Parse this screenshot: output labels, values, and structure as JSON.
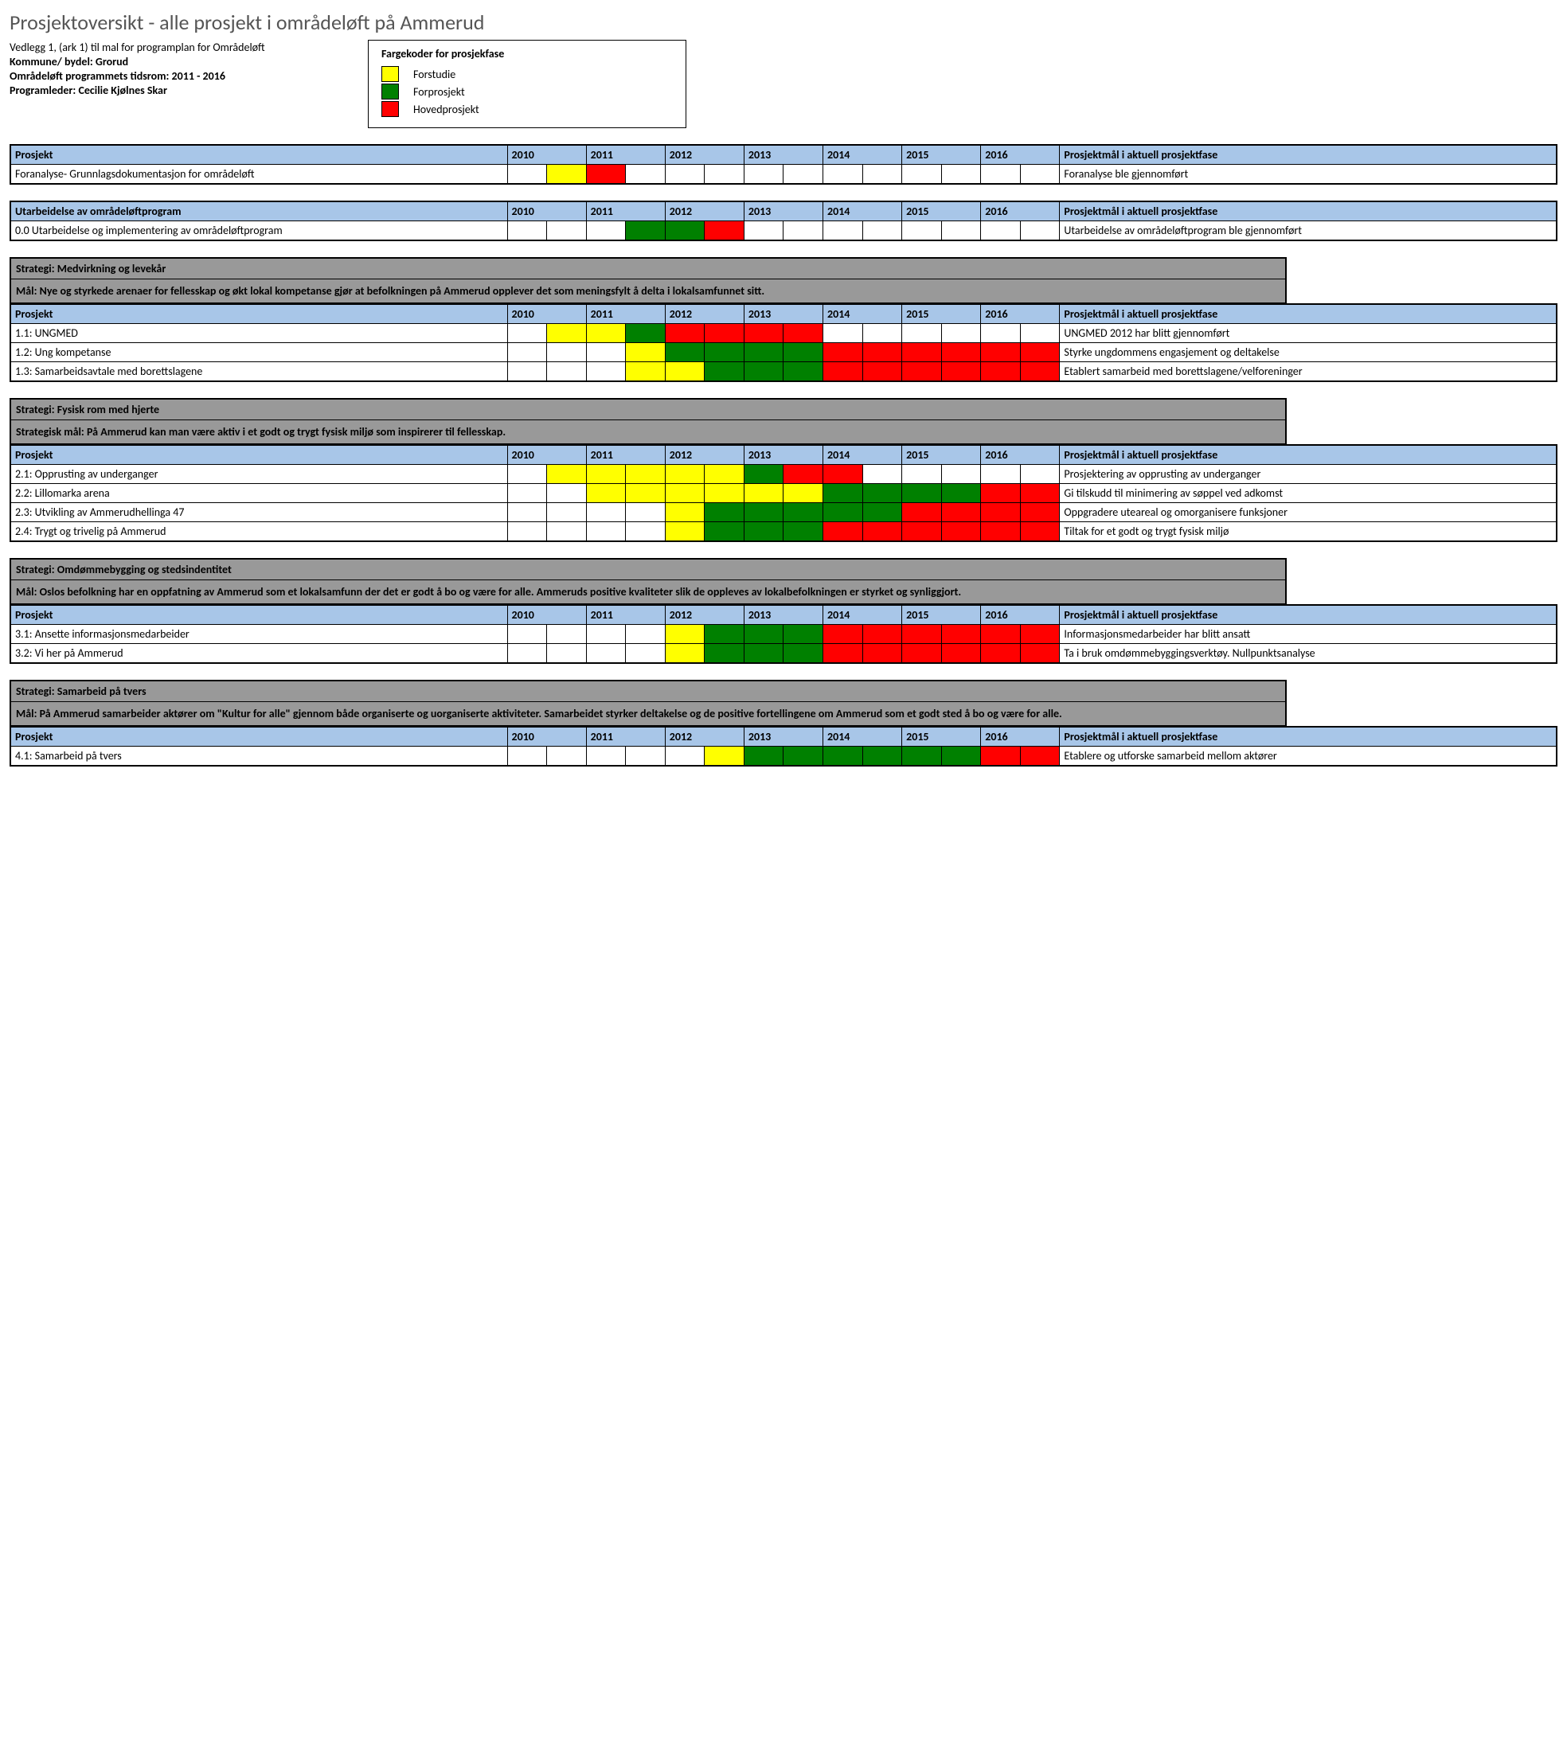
{
  "title": "Prosjektoversikt - alle prosjekt i områdeløft på Ammerud",
  "meta": {
    "vedlegg": "Vedlegg 1, (ark 1) til mal for programplan for Områdeløft",
    "kommune": "Kommune/ bydel: Grorud",
    "tidsrom": "Områdeløft programmets tidsrom: 2011 - 2016",
    "leder": "Programleder: Cecilie Kjølnes Skar"
  },
  "legend": {
    "title": "Fargekoder for prosjekfase",
    "items": [
      {
        "label": "Forstudie",
        "color": "#ffff00"
      },
      {
        "label": "Forprosjekt",
        "color": "#008000"
      },
      {
        "label": "Hovedprosjekt",
        "color": "#ff0000"
      }
    ]
  },
  "colors": {
    "blue": "#a8c6e8",
    "grey": "#999999",
    "yellow": "#ffff00",
    "green": "#008000",
    "red": "#ff0000",
    "white": "#ffffff"
  },
  "years": [
    "2010",
    "2011",
    "2012",
    "2013",
    "2014",
    "2015",
    "2016"
  ],
  "col_headers": {
    "project": "Prosjekt",
    "goal": "Prosjektmål i aktuell prosjektfase"
  },
  "sections": [
    {
      "type": "simple",
      "header_label": "Prosjekt",
      "rows": [
        {
          "name": "Foranalyse- Grunnlagsdokumentasjon for områdeløft",
          "cells": [
            "",
            "yellow",
            "red",
            "",
            "",
            "",
            "",
            "",
            "",
            "",
            "",
            "",
            "",
            ""
          ],
          "goal": "Foranalyse ble gjennomført"
        }
      ]
    },
    {
      "type": "simple",
      "header_label": "Utarbeidelse av områdeløftprogram",
      "rows": [
        {
          "name": "0.0 Utarbeidelse og implementering av områdeløftprogram",
          "cells": [
            "",
            "",
            "",
            "green",
            "green",
            "red",
            "",
            "",
            "",
            "",
            "",
            "",
            "",
            ""
          ],
          "goal": "Utarbeidelse av områdeløftprogram ble gjennomført"
        }
      ]
    },
    {
      "type": "strategy",
      "strategy": "Strategi: Medvirkning og levekår",
      "goal_text": "Mål: Nye og styrkede arenaer for fellesskap og økt lokal kompetanse gjør at befolkningen på Ammerud opplever det som meningsfylt å delta i lokalsamfunnet sitt.",
      "rows": [
        {
          "name": "1.1: UNGMED",
          "cells": [
            "",
            "yellow",
            "yellow",
            "green",
            "red",
            "red",
            "red",
            "red",
            "",
            "",
            "",
            "",
            "",
            ""
          ],
          "goal": "UNGMED 2012 har blitt gjennomført"
        },
        {
          "name": "1.2: Ung kompetanse",
          "cells": [
            "",
            "",
            "",
            "yellow",
            "green",
            "green",
            "green",
            "green",
            "red",
            "red",
            "red",
            "red",
            "red",
            "red"
          ],
          "goal": "Styrke ungdommens engasjement og deltakelse"
        },
        {
          "name": "1.3: Samarbeidsavtale med borettslagene",
          "cells": [
            "",
            "",
            "",
            "yellow",
            "yellow",
            "green",
            "green",
            "green",
            "red",
            "red",
            "red",
            "red",
            "red",
            "red"
          ],
          "goal": "Etablert samarbeid med borettslagene/velforeninger"
        }
      ]
    },
    {
      "type": "strategy",
      "strategy": "Strategi: Fysisk rom med hjerte",
      "goal_text": "Strategisk mål: På Ammerud kan man være aktiv i et godt og trygt fysisk miljø som inspirerer til fellesskap.",
      "rows": [
        {
          "name": "2.1: Opprusting av underganger",
          "cells": [
            "",
            "yellow",
            "yellow",
            "yellow",
            "yellow",
            "yellow",
            "green",
            "red",
            "red",
            "",
            "",
            "",
            "",
            ""
          ],
          "goal": "Prosjektering av opprusting av underganger"
        },
        {
          "name": "2.2: Lillomarka arena",
          "cells": [
            "",
            "",
            "yellow",
            "yellow",
            "yellow",
            "yellow",
            "yellow",
            "yellow",
            "green",
            "green",
            "green",
            "green",
            "red",
            "red"
          ],
          "goal": "Gi tilskudd til minimering av søppel ved adkomst"
        },
        {
          "name": "2.3: Utvikling av Ammerudhellinga 47",
          "cells": [
            "",
            "",
            "",
            "",
            "yellow",
            "green",
            "green",
            "green",
            "green",
            "green",
            "red",
            "red",
            "red",
            "red"
          ],
          "goal": "Oppgradere uteareal og omorganisere funksjoner"
        },
        {
          "name": "2.4: Trygt og trivelig på Ammerud",
          "cells": [
            "",
            "",
            "",
            "",
            "yellow",
            "green",
            "green",
            "green",
            "red",
            "red",
            "red",
            "red",
            "red",
            "red"
          ],
          "goal": "Tiltak for et godt og trygt fysisk miljø"
        }
      ]
    },
    {
      "type": "strategy",
      "strategy": "Strategi: Omdømmebygging og stedsindentitet",
      "goal_text": "Mål: Oslos befolkning har en oppfatning av Ammerud som et lokalsamfunn der det er godt å bo og være for alle. Ammeruds positive kvaliteter slik de oppleves av lokalbefolkningen er styrket og synliggjort.",
      "rows": [
        {
          "name": "3.1: Ansette informasjonsmedarbeider",
          "cells": [
            "",
            "",
            "",
            "",
            "yellow",
            "green",
            "green",
            "green",
            "red",
            "red",
            "red",
            "red",
            "red",
            "red"
          ],
          "goal": "Informasjonsmedarbeider har blitt ansatt"
        },
        {
          "name": "3.2: Vi her på Ammerud",
          "cells": [
            "",
            "",
            "",
            "",
            "yellow",
            "green",
            "green",
            "green",
            "red",
            "red",
            "red",
            "red",
            "red",
            "red"
          ],
          "goal": "Ta i bruk omdømmebyggingsverktøy. Nullpunktsanalyse"
        }
      ]
    },
    {
      "type": "strategy",
      "strategy": "Strategi: Samarbeid på tvers",
      "goal_text": "Mål: På Ammerud samarbeider aktører om \"Kultur for alle\" gjennom både organiserte og uorganiserte aktiviteter. Samarbeidet styrker deltakelse og de positive fortellingene om Ammerud som et godt sted å bo og være for alle.",
      "rows": [
        {
          "name": "4.1: Samarbeid på tvers",
          "cells": [
            "",
            "",
            "",
            "",
            "",
            "yellow",
            "green",
            "green",
            "green",
            "green",
            "green",
            "green",
            "red",
            "red"
          ],
          "goal": "Etablere og utforske samarbeid mellom aktører"
        }
      ]
    }
  ]
}
